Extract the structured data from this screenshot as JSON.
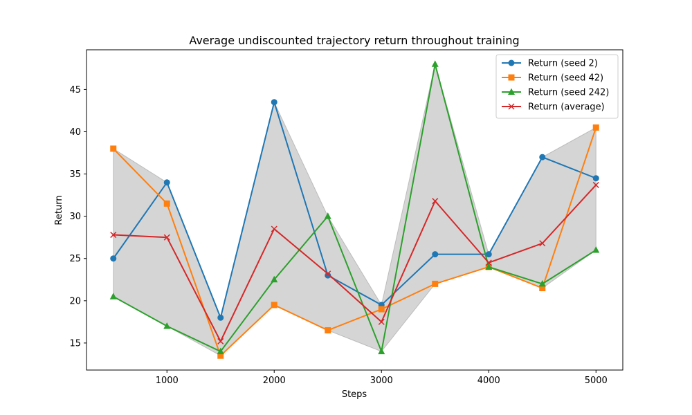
{
  "chart_data": {
    "type": "line",
    "title": "Average undiscounted trajectory return throughout training",
    "xlabel": "Steps",
    "ylabel": "Return",
    "x": [
      500,
      1000,
      1500,
      2000,
      2500,
      3000,
      3500,
      4000,
      4500,
      5000
    ],
    "xlim": [
      250,
      5250
    ],
    "ylim": [
      11.8,
      49.7
    ],
    "xticks": [
      1000,
      2000,
      3000,
      4000,
      5000
    ],
    "yticks": [
      15,
      20,
      25,
      30,
      35,
      40,
      45
    ],
    "grid": false,
    "legend_position": "top-right",
    "series": [
      {
        "name": "Return (seed 2)",
        "color": "#1f77b4",
        "marker": "circle",
        "values": [
          25,
          34,
          18,
          43.5,
          23,
          19.5,
          25.5,
          25.5,
          37,
          34.5
        ]
      },
      {
        "name": "Return (seed 42)",
        "color": "#ff7f0e",
        "marker": "square",
        "values": [
          38,
          31.5,
          13.5,
          19.5,
          16.5,
          19,
          22,
          24,
          21.5,
          40.5
        ]
      },
      {
        "name": "Return (seed 242)",
        "color": "#2ca02c",
        "marker": "triangle",
        "values": [
          20.5,
          17,
          14,
          22.5,
          30,
          14,
          48,
          24,
          22,
          26
        ]
      },
      {
        "name": "Return (average)",
        "color": "#d62728",
        "marker": "x",
        "values": [
          27.8,
          27.5,
          15.2,
          28.5,
          23.2,
          17.5,
          31.8,
          24.5,
          26.8,
          33.7
        ]
      }
    ],
    "band": {
      "color": "#808080",
      "description_source": "min-max of seeds"
    }
  }
}
